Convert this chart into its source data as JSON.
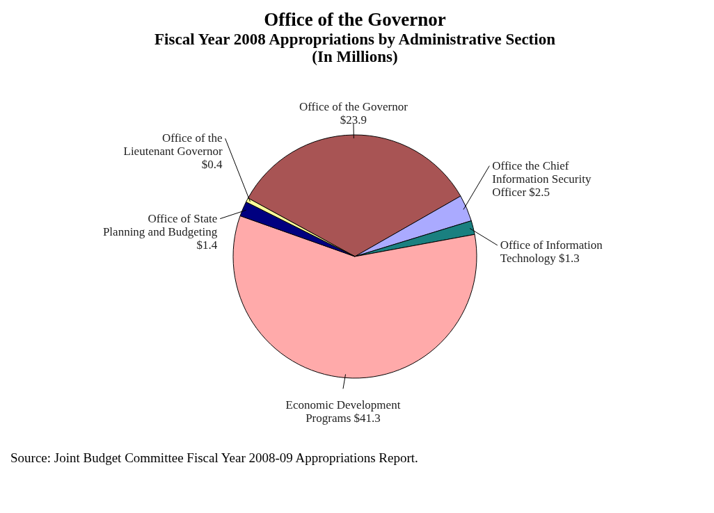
{
  "chart_data": {
    "type": "pie",
    "title": "Office of the Governor",
    "subtitle": [
      "Fiscal Year 2008 Appropriations by Administrative Section",
      "(In Millions)"
    ],
    "categories": [
      "Office of the Governor",
      "Office the Chief Information Security Officer",
      "Office of Information Technology",
      "Economic Development Programs",
      "Office of State Planning and Budgeting",
      "Office of the Lieutenant Governor"
    ],
    "values": [
      23.9,
      2.5,
      1.3,
      41.3,
      1.4,
      0.4
    ],
    "value_labels": [
      "$23.9",
      "$2.5",
      "$1.3",
      "$41.3",
      "$1.4",
      "$0.4"
    ],
    "colors": [
      "#a85454",
      "#aaaaff",
      "#1a8080",
      "#ffaaaa",
      "#000080",
      "#ffff99"
    ],
    "legend": false,
    "annotations": [
      "Source:  Joint Budget Committee Fiscal Year 2008-09 Appropriations Report."
    ]
  }
}
